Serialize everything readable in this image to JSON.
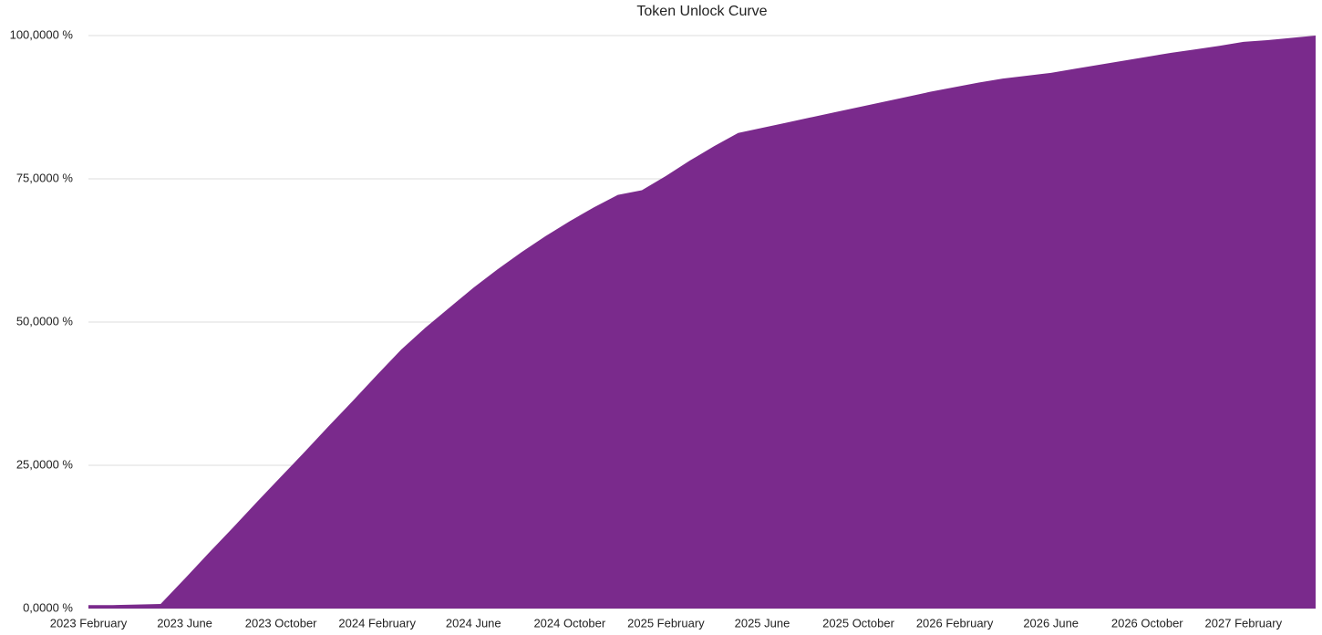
{
  "chart_data": {
    "type": "area",
    "title": "Token Unlock Curve",
    "categories": [
      "2023 February",
      null,
      null,
      null,
      "2023 June",
      null,
      null,
      null,
      "2023 October",
      null,
      null,
      null,
      "2024 February",
      null,
      null,
      null,
      "2024 June",
      null,
      null,
      null,
      "2024 October",
      null,
      null,
      null,
      "2025 February",
      null,
      null,
      null,
      "2025 June",
      null,
      null,
      null,
      "2025 October",
      null,
      null,
      null,
      "2026 February",
      null,
      null,
      null,
      "2026 June",
      null,
      null,
      null,
      "2026 October",
      null,
      null,
      null,
      "2027 February",
      null,
      null,
      null
    ],
    "values": [
      0.6,
      0.6,
      0.7,
      0.8,
      5.2,
      9.7,
      14.1,
      18.6,
      23.0,
      27.4,
      31.9,
      36.3,
      40.8,
      45.2,
      49.0,
      52.5,
      56.0,
      59.2,
      62.2,
      65.0,
      67.6,
      70.0,
      72.2,
      73.0,
      75.5,
      78.2,
      80.7,
      83.0,
      83.9,
      84.8,
      85.7,
      86.6,
      87.5,
      88.4,
      89.3,
      90.2,
      91.0,
      91.8,
      92.5,
      93.0,
      93.5,
      94.2,
      94.9,
      95.6,
      96.3,
      97.0,
      97.6,
      98.2,
      98.9,
      99.2,
      99.6,
      100
    ],
    "color": "#7a2a8c",
    "ylim": [
      0,
      100
    ],
    "yticks": [
      {
        "value": 0,
        "label": "0,0000 %"
      },
      {
        "value": 25,
        "label": "25,0000 %"
      },
      {
        "value": 50,
        "label": "50,0000 %"
      },
      {
        "value": 75,
        "label": "75,0000 %"
      },
      {
        "value": 100,
        "label": "100,0000 %"
      }
    ],
    "grid": true
  }
}
